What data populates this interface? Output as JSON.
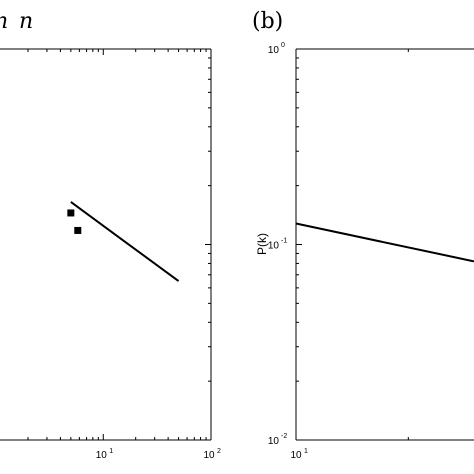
{
  "panels": {
    "a": {
      "label_fragment": "n",
      "label_math": "n"
    },
    "b": {
      "label": "(b)"
    }
  },
  "chart_data": [
    {
      "type": "scatter",
      "panel": "a",
      "title": "",
      "xlabel": "",
      "ylabel": "",
      "xscale": "log",
      "yscale": "log",
      "xlim": [
        1.1,
        100
      ],
      "x_ticks": [
        {
          "base": "10",
          "exp": "1",
          "value": 10
        },
        {
          "base": "10",
          "exp": "2",
          "value": 100
        }
      ],
      "series": [
        {
          "kind": "points",
          "x": [
            5.0,
            5.8
          ],
          "y": [
            0.145,
            0.118
          ]
        },
        {
          "kind": "line",
          "x": [
            5.0,
            50
          ],
          "y": [
            0.165,
            0.065
          ]
        }
      ],
      "ylim": [
        0.01,
        1
      ]
    },
    {
      "type": "line",
      "panel": "b",
      "title": "",
      "xlabel": "",
      "ylabel": "P(k)",
      "xscale": "log",
      "yscale": "log",
      "xlim": [
        10,
        30
      ],
      "ylim": [
        0.01,
        1
      ],
      "x_ticks": [
        {
          "base": "10",
          "exp": "1",
          "value": 10
        }
      ],
      "y_ticks": [
        {
          "base": "10",
          "exp": "0",
          "value": 1
        },
        {
          "base": "10",
          "exp": "-1",
          "value": 0.1
        },
        {
          "base": "10",
          "exp": "-2",
          "value": 0.01
        }
      ],
      "series": [
        {
          "kind": "line",
          "x": [
            10,
            30
          ],
          "y": [
            0.128,
            0.082
          ]
        }
      ]
    }
  ]
}
